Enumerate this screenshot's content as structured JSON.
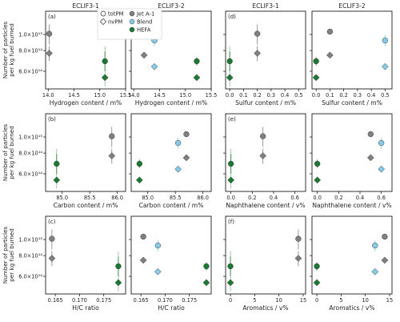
{
  "chart_data": {
    "type": "scatter",
    "ylabel_line1": "Number of particles",
    "ylabel_line2": "per kg fuel burned",
    "yscale": "log",
    "ylim": [
      470000000000000,
      1380000000000000
    ],
    "yticks": [
      {
        "value": 600000000000000,
        "label": "6.0×10¹⁴"
      },
      {
        "value": 800000000000000,
        "label": "8.0×10¹⁴"
      },
      {
        "value": 1000000000000000,
        "label": "1.0×10¹⁵"
      }
    ],
    "column_titles": [
      "ECLIF3-1",
      "ECLIF3-2",
      "ECLIF3-1",
      "ECLIF3-2"
    ],
    "legend": {
      "placement": "top-left",
      "entries": [
        {
          "label": "totPM",
          "marker": "circle-open"
        },
        {
          "label": "nvPM",
          "marker": "diamond-open"
        },
        {
          "label": "Jet A-1",
          "marker": "circle",
          "color": "#808080"
        },
        {
          "label": "Blend",
          "marker": "circle",
          "color": "#87cbe8"
        },
        {
          "label": "HEFA",
          "marker": "circle",
          "color": "#1a7a32"
        }
      ]
    },
    "fuel_colors": {
      "Jet A-1": "#808080",
      "Blend": "#87cbe8",
      "HEFA": "#1a7a32"
    },
    "values": {
      "totPM": {
        "ECLIF3-1": {
          "Jet A-1": 1010000000000000,
          "HEFA": 690000000000000
        },
        "ECLIF3-2": {
          "Jet A-1": 1040000000000000,
          "Blend": 920000000000000,
          "HEFA": 690000000000000
        }
      },
      "nvPM": {
        "ECLIF3-1": {
          "Jet A-1": 770000000000000,
          "HEFA": 550000000000000
        },
        "ECLIF3-2": {
          "Jet A-1": 750000000000000,
          "Blend": 640000000000000,
          "HEFA": 550000000000000
        }
      }
    },
    "errors": {
      "totPM": {
        "ECLIF3-1": {
          "Jet A-1": [
            870000000000000,
            1150000000000000
          ],
          "HEFA": [
            600000000000000,
            790000000000000
          ]
        },
        "ECLIF3-2": {
          "Jet A-1": [
            1040000000000000,
            1040000000000000
          ],
          "Blend": [
            850000000000000,
            990000000000000
          ],
          "HEFA": [
            650000000000000,
            730000000000000
          ]
        }
      },
      "nvPM": {
        "ECLIF3-1": {
          "Jet A-1": [
            690000000000000,
            850000000000000
          ],
          "HEFA": [
            490000000000000,
            850000000000000
          ]
        },
        "ECLIF3-2": {
          "Jet A-1": [
            750000000000000,
            750000000000000
          ],
          "Blend": [
            620000000000000,
            660000000000000
          ],
          "HEFA": [
            530000000000000,
            580000000000000
          ]
        }
      }
    },
    "panels": [
      {
        "label": "(a)",
        "row": 0,
        "col": 0,
        "campaign": "ECLIF3-1",
        "xlabel": "Hydrogen content / m%",
        "xlim": [
          13.95,
          15.5
        ],
        "xticks": [
          14.0,
          14.5,
          15.0,
          15.5
        ],
        "xtick_labels": [
          "14.0",
          "14.5",
          "15.0",
          "15.5"
        ],
        "x": {
          "Jet A-1": 14.02,
          "HEFA": 15.1
        }
      },
      {
        "label": "",
        "row": 0,
        "col": 1,
        "campaign": "ECLIF3-2",
        "xlabel": "Hydrogen content / m%",
        "xlim": [
          13.95,
          15.5
        ],
        "xticks": [
          14.0,
          14.5,
          15.0,
          15.5
        ],
        "xtick_labels": [
          "14.0",
          "14.5",
          "15.0",
          "15.5"
        ],
        "x": {
          "Jet A-1": 14.2,
          "Blend": 14.4,
          "HEFA": 15.22
        }
      },
      {
        "label": "(d)",
        "row": 0,
        "col": 2,
        "campaign": "ECLIF3-1",
        "xlabel": "Sulfur content / m%",
        "xlim": [
          -0.03,
          0.55
        ],
        "xticks": [
          0.0,
          0.1,
          0.2,
          0.3,
          0.4,
          0.5
        ],
        "xtick_labels": [
          "0.0",
          "0.1",
          "0.2",
          "0.3",
          "0.4",
          "0.5"
        ],
        "x": {
          "Jet A-1": 0.2,
          "HEFA": 0.0
        }
      },
      {
        "label": "",
        "row": 0,
        "col": 3,
        "campaign": "ECLIF3-2",
        "xlabel": "Sulfur content / m%",
        "xlim": [
          -0.03,
          0.55
        ],
        "xticks": [
          0.0,
          0.1,
          0.2,
          0.3,
          0.4,
          0.5
        ],
        "xtick_labels": [
          "0.0",
          "0.1",
          "0.2",
          "0.3",
          "0.4",
          "0.5"
        ],
        "x": {
          "Jet A-1": 0.1,
          "Blend": 0.5,
          "HEFA": 0.0
        }
      },
      {
        "label": "(b)",
        "row": 1,
        "col": 0,
        "campaign": "ECLIF3-1",
        "xlabel": "Carbon content / m%",
        "xlim": [
          84.7,
          86.15
        ],
        "xticks": [
          85.0,
          85.5,
          86.0
        ],
        "xtick_labels": [
          "85.0",
          "85.5",
          "86.0"
        ],
        "x": {
          "Jet A-1": 85.9,
          "HEFA": 84.9
        }
      },
      {
        "label": "",
        "row": 1,
        "col": 1,
        "campaign": "ECLIF3-2",
        "xlabel": "Carbon content / m%",
        "xlim": [
          84.7,
          86.15
        ],
        "xticks": [
          85.0,
          85.5,
          86.0
        ],
        "xtick_labels": [
          "85.0",
          "85.5",
          "86.0"
        ],
        "x": {
          "Jet A-1": 85.7,
          "Blend": 85.55,
          "HEFA": 84.85
        }
      },
      {
        "label": "(e)",
        "row": 1,
        "col": 2,
        "campaign": "ECLIF3-1",
        "xlabel": "Naphthalene content / v%",
        "xlim": [
          -0.05,
          0.7
        ],
        "xticks": [
          0.0,
          0.2,
          0.4,
          0.6
        ],
        "xtick_labels": [
          "0.0",
          "0.2",
          "0.4",
          "0.6"
        ],
        "x": {
          "Jet A-1": 0.3,
          "HEFA": 0.0
        }
      },
      {
        "label": "",
        "row": 1,
        "col": 3,
        "campaign": "ECLIF3-2",
        "xlabel": "Naphthalene content / v%",
        "xlim": [
          -0.05,
          0.7
        ],
        "xticks": [
          0.0,
          0.2,
          0.4,
          0.6
        ],
        "xtick_labels": [
          "0.0",
          "0.2",
          "0.4",
          "0.6"
        ],
        "x": {
          "Jet A-1": 0.5,
          "Blend": 0.6,
          "HEFA": 0.0
        }
      },
      {
        "label": "(c)",
        "row": 2,
        "col": 0,
        "campaign": "ECLIF3-1",
        "xlabel": "H/C ratio",
        "xlim": [
          0.163,
          0.1795
        ],
        "xticks": [
          0.165,
          0.17,
          0.175
        ],
        "xtick_labels": [
          "0.165",
          "0.170",
          "0.175"
        ],
        "x": {
          "Jet A-1": 0.1643,
          "HEFA": 0.178
        }
      },
      {
        "label": "",
        "row": 2,
        "col": 1,
        "campaign": "ECLIF3-2",
        "xlabel": "H/C ratio",
        "xlim": [
          0.163,
          0.1795
        ],
        "xticks": [
          0.165,
          0.17,
          0.175
        ],
        "xtick_labels": [
          "0.165",
          "0.170",
          "0.175"
        ],
        "x": {
          "Jet A-1": 0.1655,
          "Blend": 0.1685,
          "HEFA": 0.1785
        }
      },
      {
        "label": "(f)",
        "row": 2,
        "col": 2,
        "campaign": "ECLIF3-1",
        "xlabel": "Aromatics / v%",
        "xlim": [
          -1,
          15.5
        ],
        "xticks": [
          0,
          5,
          10,
          15
        ],
        "xtick_labels": [
          "0",
          "5",
          "10",
          "15"
        ],
        "x": {
          "Jet A-1": 14.0,
          "HEFA": 0.0
        }
      },
      {
        "label": "",
        "row": 2,
        "col": 3,
        "campaign": "ECLIF3-2",
        "xlabel": "Aromatics / v%",
        "xlim": [
          -1,
          15.5
        ],
        "xticks": [
          0,
          5,
          10,
          15
        ],
        "xtick_labels": [
          "0",
          "5",
          "10",
          "15"
        ],
        "x": {
          "Jet A-1": 14.0,
          "Blend": 12.0,
          "HEFA": 0.0
        }
      }
    ]
  }
}
